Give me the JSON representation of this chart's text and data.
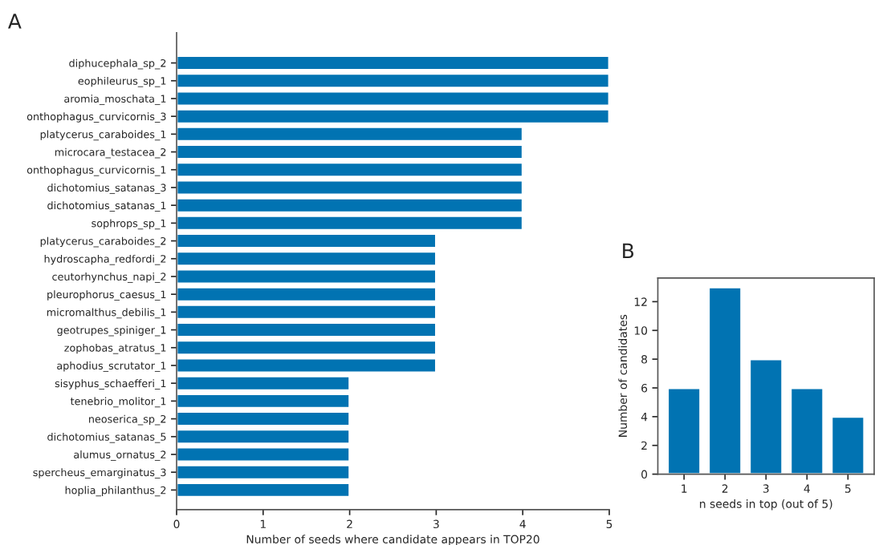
{
  "chart_data": [
    {
      "type": "bar",
      "orientation": "horizontal",
      "annotations": [
        "A"
      ],
      "xlabel": "Number of seeds where candidate appears in TOP20",
      "categories": [
        "diphucephala_sp_2",
        "eophileurus_sp_1",
        "aromia_moschata_1",
        "onthophagus_curvicornis_3",
        "platycerus_caraboides_1",
        "microcara_testacea_2",
        "onthophagus_curvicornis_1",
        "dichotomius_satanas_3",
        "dichotomius_satanas_1",
        "sophrops_sp_1",
        "platycerus_caraboides_2",
        "hydroscapha_redfordi_2",
        "ceutorhynchus_napi_2",
        "pleurophorus_caesus_1",
        "micromalthus_debilis_1",
        "geotrupes_spiniger_1",
        "zophobas_atratus_1",
        "aphodius_scrutator_1",
        "sisyphus_schaefferi_1",
        "tenebrio_molitor_1",
        "neoserica_sp_2",
        "dichotomius_satanas_5",
        "alumus_ornatus_2",
        "spercheus_emarginatus_3",
        "hoplia_philanthus_2"
      ],
      "values": [
        5,
        5,
        5,
        5,
        4,
        4,
        4,
        4,
        4,
        4,
        3,
        3,
        3,
        3,
        3,
        3,
        3,
        3,
        2,
        2,
        2,
        2,
        2,
        2,
        2
      ],
      "color": "#0173b2",
      "xlim": [
        0,
        5
      ],
      "xticks": [
        0,
        1,
        2,
        3,
        4,
        5
      ],
      "grid": false,
      "legend": false
    },
    {
      "type": "bar",
      "annotations": [
        "B"
      ],
      "xlabel": "n seeds in top (out of 5)",
      "ylabel": "Number of candidates",
      "categories": [
        "1",
        "2",
        "3",
        "4",
        "5"
      ],
      "values": [
        6,
        13,
        8,
        6,
        4
      ],
      "color": "#0173b2",
      "ylim": [
        0,
        13.65
      ],
      "yticks": [
        0,
        2,
        4,
        6,
        8,
        10,
        12
      ],
      "grid": false,
      "legend": false
    }
  ]
}
